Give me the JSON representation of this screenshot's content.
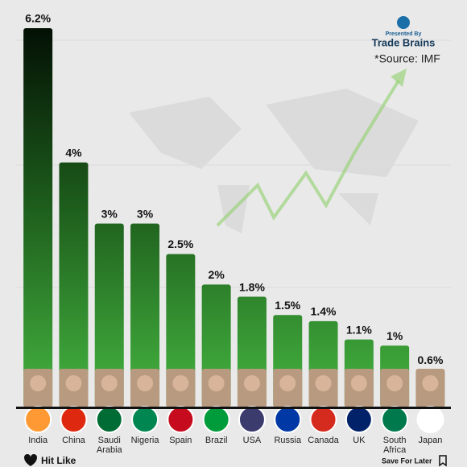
{
  "chart_data": {
    "type": "bar",
    "categories": [
      "India",
      "China",
      "Saudi Arabia",
      "Nigeria",
      "Spain",
      "Brazil",
      "USA",
      "Russia",
      "Canada",
      "UK",
      "South Africa",
      "Japan"
    ],
    "values": [
      6.2,
      4,
      3,
      3,
      2.5,
      2,
      1.8,
      1.5,
      1.4,
      1.1,
      1,
      0.6
    ],
    "value_labels": [
      "6.2%",
      "4%",
      "3%",
      "3%",
      "2.5%",
      "2%",
      "1.8%",
      "1.5%",
      "1.4%",
      "1.1%",
      "1%",
      "0.6%"
    ],
    "color": "#2f8f2c"
  },
  "branding": {
    "presented_by": "Presented By",
    "brand": "Trade Brains",
    "source": "*Source: IMF"
  },
  "footer": {
    "like": "Hit Like",
    "save": "Save For Later"
  }
}
